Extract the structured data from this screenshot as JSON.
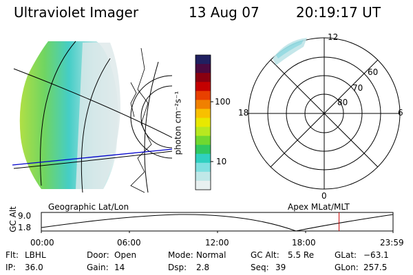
{
  "header": {
    "instrument": "Ultraviolet Imager",
    "date": "13 Aug 07",
    "time": "20:19:17 UT"
  },
  "colorbar": {
    "unit_label": "photon cm⁻²s⁻¹",
    "ticks": [
      "100",
      "10"
    ],
    "colors": [
      "#202060",
      "#4a0a40",
      "#8a0010",
      "#c40000",
      "#e84000",
      "#f08000",
      "#f8c000",
      "#e8e800",
      "#b8e820",
      "#70d830",
      "#30c860",
      "#30d0c0",
      "#80e0e0",
      "#c0e8e8",
      "#e8f0f0"
    ]
  },
  "left_panel": {
    "label": "Geographic Lat/Lon",
    "accent_color": "#0000cc"
  },
  "right_panel": {
    "label": "Apex MLat/MLT",
    "mlt_labels": {
      "top": "12",
      "bottom": "0",
      "left": "18",
      "right": "6"
    },
    "mlat_labels": [
      "60",
      "70",
      "80"
    ]
  },
  "altitude_plot": {
    "ylabel": "GC Alt",
    "yticks": [
      "9.0",
      "1.8"
    ],
    "xticks": [
      "00:00",
      "06:00",
      "12:00",
      "18:00",
      "23:59"
    ],
    "marker_color": "#cc0000",
    "marker_time_hours": 20.32
  },
  "footer": {
    "flt_label": "Flt:",
    "flt_value": "LBHL",
    "ip_label": "IP:",
    "ip_value": "36.0",
    "door_label": "Door:",
    "door_value": "Open",
    "gain_label": "Gain:",
    "gain_value": "14",
    "mode_label": "Mode:",
    "mode_value": "Normal",
    "dsp_label": "Dsp:",
    "dsp_value": "2.8",
    "gcalt_label": "GC Alt:",
    "gcalt_value": "5.5 Re",
    "seq_label": "Seq:",
    "seq_value": "39",
    "glat_label": "GLat:",
    "glat_value": "−63.1",
    "glon_label": "GLon:",
    "glon_value": "257.5"
  }
}
